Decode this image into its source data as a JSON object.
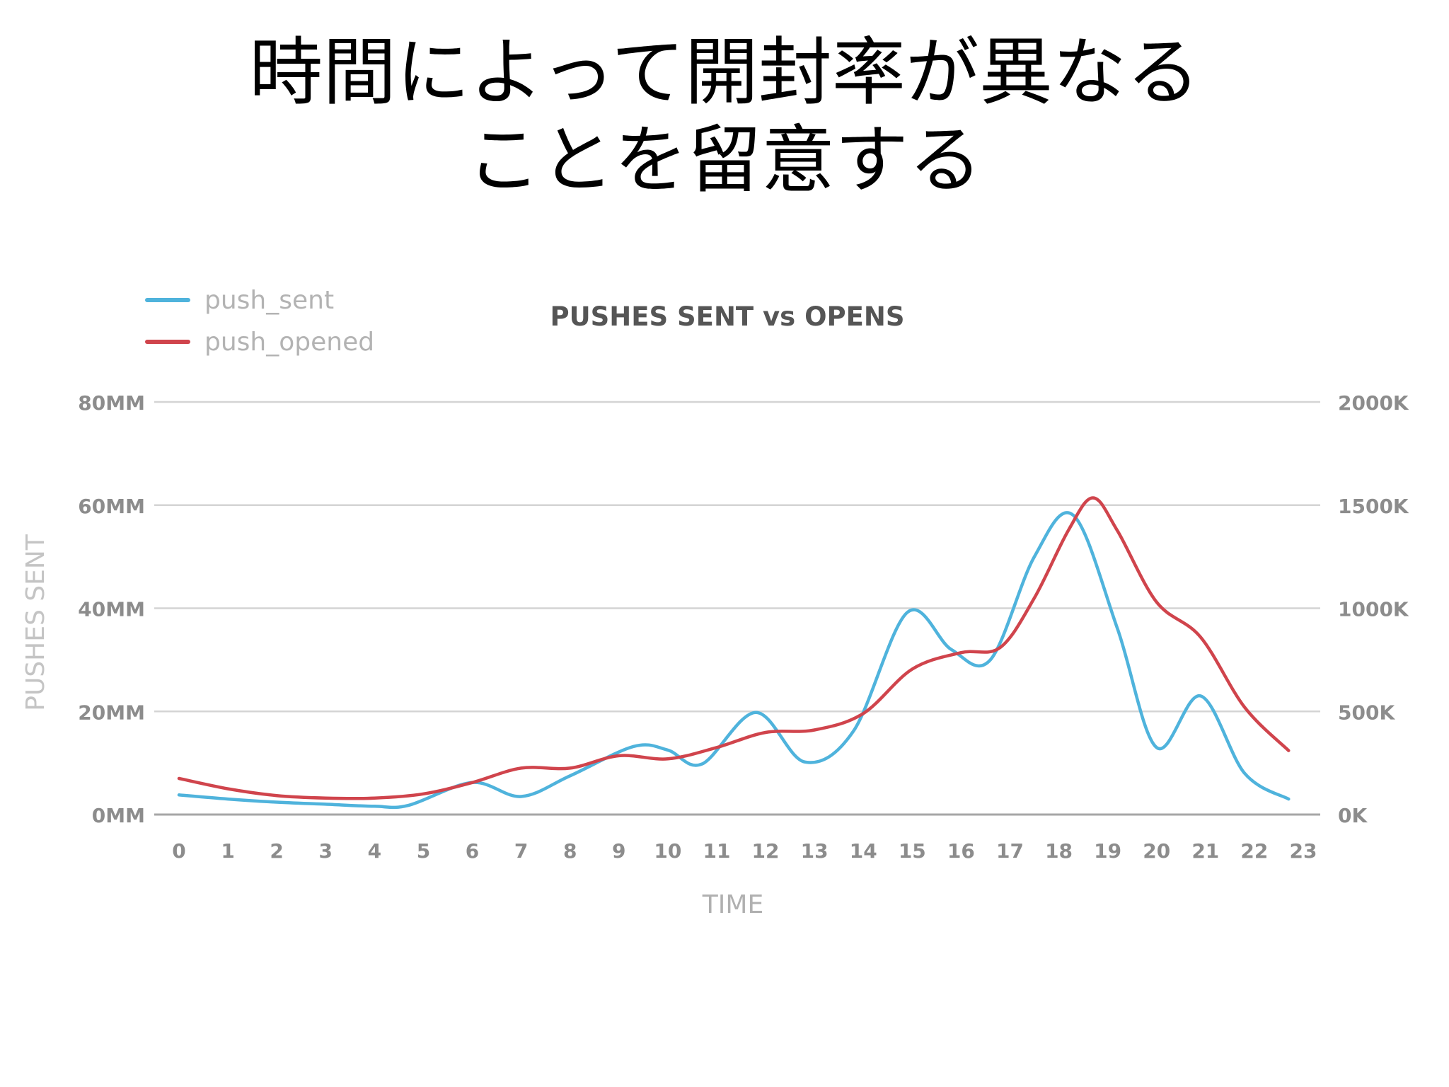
{
  "slide": {
    "title_line1": "時間によって開封率が異なる",
    "title_line2": "ことを留意する"
  },
  "chart_data": {
    "type": "line",
    "title": "PUSHES SENT vs OPENS",
    "xlabel": "TIME",
    "ylabel": "PUSHES SENT",
    "y2label": "",
    "legend_position": "top-left",
    "grid": true,
    "x": [
      0,
      1,
      2,
      3,
      4,
      5,
      6,
      7,
      8,
      9,
      10,
      11,
      12,
      13,
      14,
      15,
      16,
      17,
      18,
      19,
      20,
      21,
      22,
      23
    ],
    "x_tick_labels": [
      "0",
      "1",
      "2",
      "3",
      "4",
      "5",
      "6",
      "7",
      "8",
      "9",
      "10",
      "11",
      "12",
      "13",
      "14",
      "15",
      "16",
      "17",
      "18",
      "19",
      "20",
      "21",
      "22",
      "23"
    ],
    "ylim": [
      0,
      80
    ],
    "y_tick_labels": [
      "0MM",
      "20MM",
      "40MM",
      "60MM",
      "80MM"
    ],
    "y2lim": [
      0,
      2000
    ],
    "y2_tick_labels": [
      "0K",
      "500K",
      "1000K",
      "1500K",
      "2000K"
    ],
    "series": [
      {
        "name": "push_sent",
        "axis": "left",
        "unit": "MM",
        "color": "#4fb3dc",
        "points": [
          [
            0,
            3.8
          ],
          [
            1,
            3.0
          ],
          [
            2,
            2.4
          ],
          [
            3,
            2.0
          ],
          [
            4,
            1.6
          ],
          [
            4.7,
            1.8
          ],
          [
            6,
            6.2
          ],
          [
            7,
            3.5
          ],
          [
            8,
            7.5
          ],
          [
            9.3,
            13.2
          ],
          [
            10,
            12.5
          ],
          [
            10.7,
            9.8
          ],
          [
            11.8,
            19.8
          ],
          [
            12.8,
            10.2
          ],
          [
            13.8,
            16.2
          ],
          [
            14.9,
            39.2
          ],
          [
            15.8,
            32.0
          ],
          [
            16.6,
            30.0
          ],
          [
            17.5,
            50.0
          ],
          [
            18.3,
            58.0
          ],
          [
            19.2,
            36.0
          ],
          [
            20,
            13.0
          ],
          [
            20.9,
            23.0
          ],
          [
            21.8,
            8.0
          ],
          [
            22.7,
            3.0
          ]
        ]
      },
      {
        "name": "push_opened",
        "axis": "right",
        "unit": "K",
        "color": "#d0444c",
        "points": [
          [
            0,
            175
          ],
          [
            1,
            125
          ],
          [
            2,
            92
          ],
          [
            3,
            80
          ],
          [
            4,
            80
          ],
          [
            5,
            100
          ],
          [
            6,
            155
          ],
          [
            7,
            225
          ],
          [
            8,
            225
          ],
          [
            9,
            285
          ],
          [
            10,
            270
          ],
          [
            11,
            325
          ],
          [
            12,
            398
          ],
          [
            13,
            410
          ],
          [
            14,
            490
          ],
          [
            15,
            705
          ],
          [
            16,
            785
          ],
          [
            16.8,
            810
          ],
          [
            17.5,
            1050
          ],
          [
            18.2,
            1380
          ],
          [
            18.7,
            1535
          ],
          [
            19.2,
            1375
          ],
          [
            20,
            1030
          ],
          [
            20.9,
            860
          ],
          [
            21.8,
            520
          ],
          [
            22.7,
            310
          ]
        ]
      }
    ]
  }
}
